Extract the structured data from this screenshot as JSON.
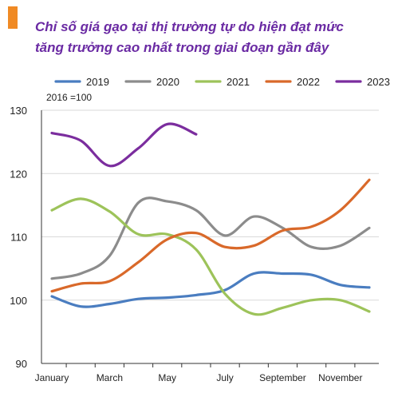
{
  "chart_data": {
    "type": "line",
    "title_lines": [
      "Chỉ số giá gạo tại thị trường tự do hiện đạt mức",
      "tăng trưởng cao nhất trong giai đoạn gần đây"
    ],
    "unit_note": "2016 =100",
    "accent_color": "#f08a24",
    "title_color": "#6a2aa3",
    "ylim": [
      90,
      130
    ],
    "yticks": [
      "90",
      "100",
      "110",
      "120",
      "130"
    ],
    "x_tick_labels": [
      "January",
      "March",
      "May",
      "July",
      "September",
      "November"
    ],
    "x_tick_months": [
      1,
      3,
      5,
      7,
      9,
      11
    ],
    "xlim": [
      1,
      12
    ],
    "grid": "horizontal",
    "legend_position": "top",
    "series": [
      {
        "name": "2019",
        "color": "#4a7dc0",
        "x": [
          1,
          2,
          3,
          4,
          5,
          6,
          7,
          8,
          9,
          10,
          11,
          12
        ],
        "y": [
          100.6,
          99.0,
          99.4,
          100.2,
          100.4,
          100.8,
          101.6,
          104.2,
          104.2,
          104.0,
          102.4,
          102.0
        ]
      },
      {
        "name": "2020",
        "color": "#8c8c8c",
        "x": [
          1,
          2,
          3,
          4,
          5,
          6,
          7,
          8,
          9,
          10,
          11,
          12
        ],
        "y": [
          103.4,
          104.2,
          107.0,
          115.4,
          115.6,
          114.2,
          110.2,
          113.2,
          111.4,
          108.4,
          108.6,
          111.4
        ]
      },
      {
        "name": "2021",
        "color": "#9dc35a",
        "x": [
          1,
          2,
          3,
          4,
          5,
          6,
          7,
          8,
          9,
          10,
          11,
          12
        ],
        "y": [
          114.2,
          116.0,
          114.0,
          110.4,
          110.4,
          108.0,
          101.0,
          97.8,
          98.8,
          100.0,
          100.0,
          98.2
        ]
      },
      {
        "name": "2022",
        "color": "#d9692a",
        "x": [
          1,
          2,
          3,
          4,
          5,
          6,
          7,
          8,
          9,
          10,
          11,
          12
        ],
        "y": [
          101.4,
          102.6,
          103.0,
          106.0,
          109.6,
          110.6,
          108.4,
          108.6,
          111.0,
          111.6,
          114.2,
          119.0
        ]
      },
      {
        "name": "2023",
        "color": "#7b2d9e",
        "x": [
          1,
          2,
          3,
          4,
          5,
          6
        ],
        "y": [
          126.4,
          125.2,
          121.2,
          124.0,
          127.8,
          126.2
        ]
      }
    ]
  }
}
